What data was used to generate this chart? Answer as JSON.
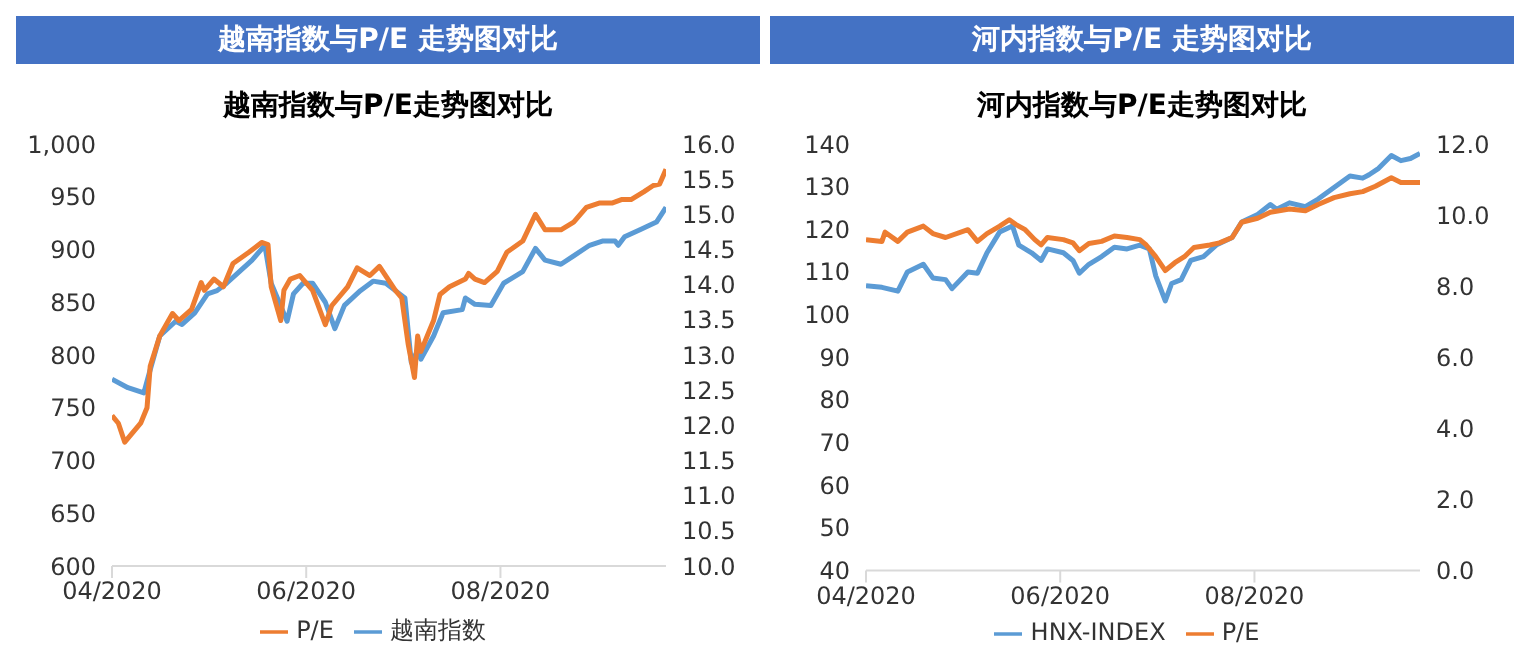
{
  "chart_data": [
    {
      "type": "line",
      "title": "越南指数与P/E 走势图对比",
      "subtitle": "越南指数与P/E走势图对比",
      "xlim": [
        "2020-04-01",
        "2020-09-22"
      ],
      "xticks": [
        {
          "value": "2020-04-01",
          "label": "04/2020"
        },
        {
          "value": "2020-06-01",
          "label": "06/2020"
        },
        {
          "value": "2020-08-01",
          "label": "08/2020"
        }
      ],
      "ylim": [
        600,
        1000
      ],
      "yticks": [
        600,
        650,
        700,
        750,
        800,
        850,
        900,
        950,
        {
          "value": 1000,
          "label": "1,000"
        }
      ],
      "y2lim": [
        10,
        16
      ],
      "y2ticks": [
        {
          "value": 10,
          "label": "10.0"
        },
        {
          "value": 10.5,
          "label": "10.5"
        },
        {
          "value": 11,
          "label": "11.0"
        },
        {
          "value": 11.5,
          "label": "11.5"
        },
        {
          "value": 12,
          "label": "12.0"
        },
        {
          "value": 12.5,
          "label": "12.5"
        },
        {
          "value": 13,
          "label": "13.0"
        },
        {
          "value": 13.5,
          "label": "13.5"
        },
        {
          "value": 14,
          "label": "14.0"
        },
        {
          "value": 14.5,
          "label": "14.5"
        },
        {
          "value": 15,
          "label": "15.0"
        },
        {
          "value": 15.5,
          "label": "15.5"
        },
        {
          "value": 16,
          "label": "16.0"
        }
      ],
      "grid": false,
      "legend": "bottom",
      "marker": "none",
      "line_style": "solid",
      "series": [
        {
          "name": "越南指数",
          "color": "#5b9bd5",
          "x": [
            "2020-04-01",
            "2020-04-06",
            "2020-04-11",
            "2020-04-13",
            "2020-04-16",
            "2020-04-21",
            "2020-04-23",
            "2020-04-27",
            "2020-05-01",
            "2020-05-04",
            "2020-05-07",
            "2020-05-11",
            "2020-05-15",
            "2020-05-19",
            "2020-05-21",
            "2020-05-26",
            "2020-05-28",
            "2020-05-31",
            "2020-06-03",
            "2020-06-07",
            "2020-06-10",
            "2020-06-13",
            "2020-06-18",
            "2020-06-22",
            "2020-06-26",
            "2020-06-29",
            "2020-07-02",
            "2020-07-04",
            "2020-07-06",
            "2020-07-07",
            "2020-07-11",
            "2020-07-14",
            "2020-07-20",
            "2020-07-21",
            "2020-07-24",
            "2020-07-29",
            "2020-08-02",
            "2020-08-08",
            "2020-08-12",
            "2020-08-15",
            "2020-08-20",
            "2020-08-24",
            "2020-08-29",
            "2020-09-02",
            "2020-09-06",
            "2020-09-07",
            "2020-09-09",
            "2020-09-14",
            "2020-09-19",
            "2020-09-22"
          ],
          "values": [
            777,
            769,
            764,
            786,
            818,
            832,
            829,
            840,
            858,
            861,
            868,
            879,
            890,
            904,
            868,
            832,
            858,
            868,
            868,
            850,
            825,
            847,
            861,
            870,
            868,
            861,
            854,
            793,
            804,
            796,
            818,
            840,
            843,
            854,
            848,
            847,
            868,
            879,
            901,
            890,
            886,
            894,
            904,
            908,
            908,
            904,
            912,
            919,
            926,
            940
          ]
        },
        {
          "name": "P/E",
          "color": "#ed7d31",
          "axis": "y2",
          "x": [
            "2020-04-01",
            "2020-04-03",
            "2020-04-05",
            "2020-04-10",
            "2020-04-12",
            "2020-04-13",
            "2020-04-16",
            "2020-04-20",
            "2020-04-22",
            "2020-04-26",
            "2020-04-29",
            "2020-04-30",
            "2020-05-03",
            "2020-05-06",
            "2020-05-09",
            "2020-05-14",
            "2020-05-18",
            "2020-05-20",
            "2020-05-21",
            "2020-05-24",
            "2020-05-25",
            "2020-05-27",
            "2020-05-30",
            "2020-06-03",
            "2020-06-07",
            "2020-06-09",
            "2020-06-14",
            "2020-06-17",
            "2020-06-21",
            "2020-06-24",
            "2020-06-29",
            "2020-07-01",
            "2020-07-03",
            "2020-07-05",
            "2020-07-06",
            "2020-07-07",
            "2020-07-11",
            "2020-07-13",
            "2020-07-16",
            "2020-07-21",
            "2020-07-22",
            "2020-07-24",
            "2020-07-27",
            "2020-07-31",
            "2020-08-03",
            "2020-08-08",
            "2020-08-12",
            "2020-08-15",
            "2020-08-20",
            "2020-08-24",
            "2020-08-28",
            "2020-09-01",
            "2020-09-05",
            "2020-09-08",
            "2020-09-11",
            "2020-09-15",
            "2020-09-18",
            "2020-09-20",
            "2020-09-22"
          ],
          "values": [
            12.14,
            12.03,
            11.76,
            12.03,
            12.25,
            12.84,
            13.27,
            13.59,
            13.49,
            13.65,
            14.03,
            13.92,
            14.08,
            13.97,
            14.3,
            14.46,
            14.6,
            14.57,
            13.97,
            13.49,
            13.92,
            14.08,
            14.13,
            13.92,
            13.43,
            13.7,
            13.97,
            14.24,
            14.13,
            14.26,
            13.92,
            13.81,
            13.16,
            12.68,
            13.27,
            13.05,
            13.49,
            13.86,
            13.97,
            14.08,
            14.16,
            14.08,
            14.03,
            14.19,
            14.46,
            14.62,
            15.0,
            14.78,
            14.78,
            14.89,
            15.1,
            15.16,
            15.16,
            15.21,
            15.21,
            15.32,
            15.41,
            15.43,
            15.64
          ]
        }
      ]
    },
    {
      "type": "line",
      "title": "河内指数与P/E 走势图对比",
      "subtitle": "河内指数与P/E走势图对比",
      "xlim": [
        "2020-04-01",
        "2020-09-22"
      ],
      "xticks": [
        {
          "value": "2020-04-01",
          "label": "04/2020"
        },
        {
          "value": "2020-06-01",
          "label": "06/2020"
        },
        {
          "value": "2020-08-01",
          "label": "08/2020"
        }
      ],
      "ylim": [
        40,
        140
      ],
      "yticks": [
        40,
        50,
        60,
        70,
        80,
        90,
        100,
        110,
        120,
        130,
        140
      ],
      "y2lim": [
        0,
        12
      ],
      "y2ticks": [
        {
          "value": 0,
          "label": "0.0"
        },
        {
          "value": 2,
          "label": "2.0"
        },
        {
          "value": 4,
          "label": "4.0"
        },
        {
          "value": 6,
          "label": "6.0"
        },
        {
          "value": 8,
          "label": "8.0"
        },
        {
          "value": 10,
          "label": "10.0"
        },
        {
          "value": 12,
          "label": "12.0"
        }
      ],
      "grid": false,
      "legend": "bottom",
      "marker": "none",
      "line_style": "solid",
      "series": [
        {
          "name": "HNX-INDEX",
          "color": "#5b9bd5",
          "x": [
            "2020-04-01",
            "2020-04-06",
            "2020-04-11",
            "2020-04-14",
            "2020-04-19",
            "2020-04-22",
            "2020-04-26",
            "2020-04-28",
            "2020-05-03",
            "2020-05-06",
            "2020-05-09",
            "2020-05-13",
            "2020-05-17",
            "2020-05-19",
            "2020-05-23",
            "2020-05-26",
            "2020-05-28",
            "2020-06-02",
            "2020-06-05",
            "2020-06-07",
            "2020-06-10",
            "2020-06-14",
            "2020-06-18",
            "2020-06-22",
            "2020-06-26",
            "2020-06-29",
            "2020-07-01",
            "2020-07-04",
            "2020-07-06",
            "2020-07-09",
            "2020-07-12",
            "2020-07-16",
            "2020-07-20",
            "2020-07-25",
            "2020-07-28",
            "2020-08-02",
            "2020-08-06",
            "2020-08-08",
            "2020-08-12",
            "2020-08-17",
            "2020-08-21",
            "2020-08-26",
            "2020-08-31",
            "2020-09-04",
            "2020-09-06",
            "2020-09-09",
            "2020-09-13",
            "2020-09-16",
            "2020-09-19",
            "2020-09-22"
          ],
          "values": [
            106.8,
            106.4,
            105.5,
            110,
            111.8,
            108.6,
            108.2,
            106.1,
            110,
            109.7,
            114.5,
            119.4,
            120.8,
            116.3,
            114.5,
            112.7,
            115.4,
            114.5,
            112.7,
            109.7,
            111.8,
            113.6,
            115.8,
            115.4,
            116.3,
            115.4,
            109.1,
            103.2,
            107.3,
            108.2,
            112.7,
            113.6,
            116.3,
            118.1,
            121.7,
            123.5,
            125.8,
            124.7,
            126.2,
            125.3,
            127.1,
            129.8,
            132.5,
            132,
            132.8,
            134.3,
            137.3,
            136.1,
            136.6,
            137.8
          ]
        },
        {
          "name": "P/E",
          "color": "#ed7d31",
          "axis": "y2",
          "x": [
            "2020-04-01",
            "2020-04-06",
            "2020-04-07",
            "2020-04-11",
            "2020-04-14",
            "2020-04-19",
            "2020-04-22",
            "2020-04-26",
            "2020-05-03",
            "2020-05-06",
            "2020-05-09",
            "2020-05-13",
            "2020-05-16",
            "2020-05-18",
            "2020-05-21",
            "2020-05-24",
            "2020-05-26",
            "2020-05-28",
            "2020-06-02",
            "2020-06-05",
            "2020-06-07",
            "2020-06-10",
            "2020-06-14",
            "2020-06-18",
            "2020-06-22",
            "2020-06-26",
            "2020-06-28",
            "2020-07-01",
            "2020-07-04",
            "2020-07-07",
            "2020-07-10",
            "2020-07-13",
            "2020-07-18",
            "2020-07-21",
            "2020-07-25",
            "2020-07-28",
            "2020-08-02",
            "2020-08-06",
            "2020-08-12",
            "2020-08-17",
            "2020-08-21",
            "2020-08-26",
            "2020-08-31",
            "2020-09-04",
            "2020-09-08",
            "2020-09-13",
            "2020-09-16",
            "2020-09-22"
          ],
          "values": [
            9.31,
            9.26,
            9.52,
            9.26,
            9.52,
            9.69,
            9.48,
            9.37,
            9.59,
            9.26,
            9.48,
            9.69,
            9.87,
            9.74,
            9.59,
            9.31,
            9.16,
            9.37,
            9.31,
            9.22,
            9.0,
            9.2,
            9.26,
            9.41,
            9.37,
            9.31,
            9.16,
            8.83,
            8.44,
            8.66,
            8.83,
            9.09,
            9.16,
            9.22,
            9.37,
            9.8,
            9.91,
            10.08,
            10.17,
            10.12,
            10.3,
            10.49,
            10.6,
            10.66,
            10.81,
            11.05,
            10.92,
            10.92
          ]
        }
      ]
    }
  ]
}
